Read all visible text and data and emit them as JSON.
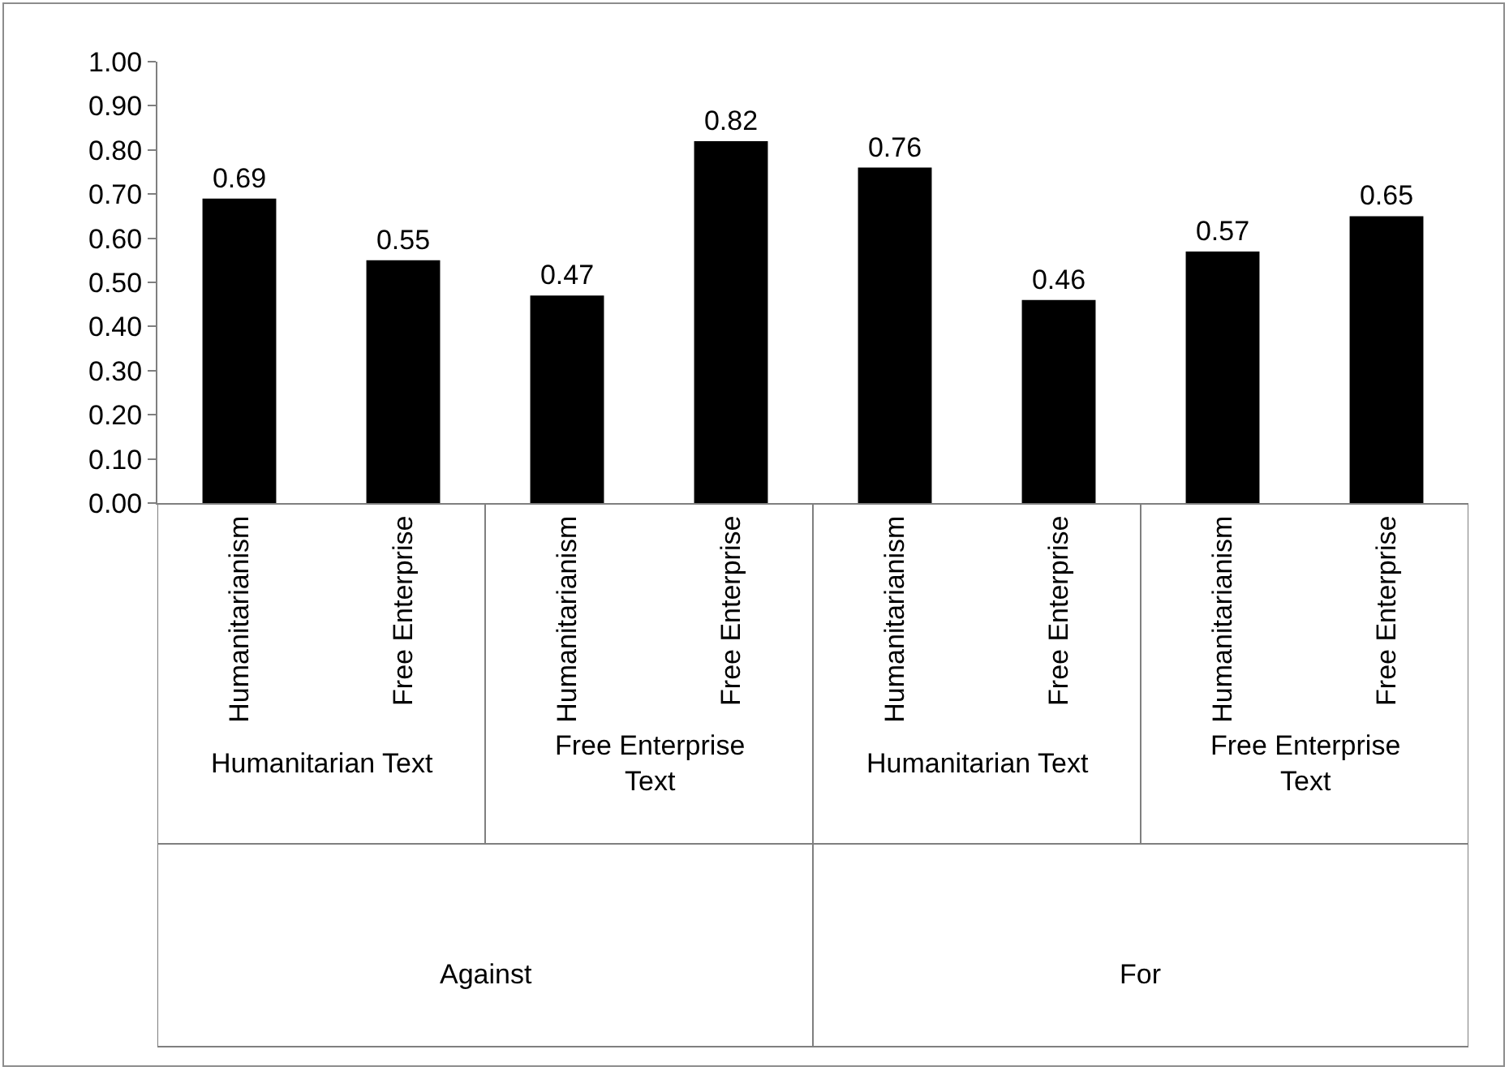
{
  "chart_data": {
    "type": "bar",
    "categories": [
      "Humanitarianism",
      "Free Enterprise",
      "Humanitarianism",
      "Free Enterprise",
      "Humanitarianism",
      "Free Enterprise",
      "Humanitarianism",
      "Free Enterprise"
    ],
    "values": [
      0.69,
      0.55,
      0.47,
      0.82,
      0.76,
      0.46,
      0.57,
      0.65
    ],
    "value_labels": [
      "0.69",
      "0.55",
      "0.47",
      "0.82",
      "0.76",
      "0.46",
      "0.57",
      "0.65"
    ],
    "color": "#000000",
    "ylim": [
      0,
      1
    ],
    "yticks": [
      {
        "value": 0,
        "label": "0.00"
      },
      {
        "value": 0.1,
        "label": "0.10"
      },
      {
        "value": 0.2,
        "label": "0.20"
      },
      {
        "value": 0.3,
        "label": "0.30"
      },
      {
        "value": 0.4,
        "label": "0.40"
      },
      {
        "value": 0.5,
        "label": "0.50"
      },
      {
        "value": 0.6,
        "label": "0.60"
      },
      {
        "value": 0.7,
        "label": "0.70"
      },
      {
        "value": 0.8,
        "label": "0.80"
      },
      {
        "value": 0.9,
        "label": "0.90"
      },
      {
        "value": 1,
        "label": "1.00"
      }
    ],
    "annotations": [
      "Humanitarian Text",
      "Free Enterprise Text",
      "Humanitarian Text",
      "Free Enterprise Text",
      "Against",
      "For"
    ],
    "grid": false
  }
}
